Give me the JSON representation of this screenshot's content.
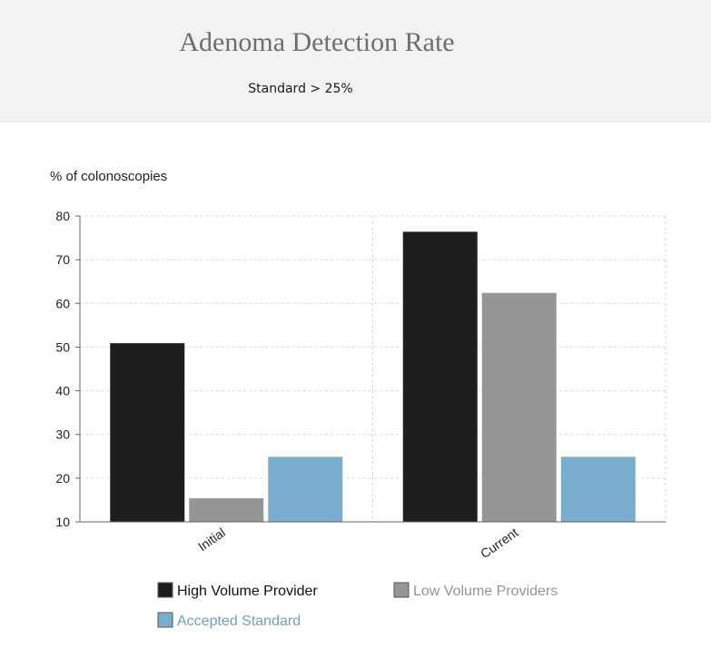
{
  "header": {
    "title": "Adenoma Detection Rate",
    "subtitle": "Standard > 25%"
  },
  "colors": {
    "high_volume": "#1e1e1e",
    "low_volume": "#959595",
    "standard": "#7aaccd",
    "grid": "#d8d8d8",
    "axis": "#666666"
  },
  "chart_data": {
    "type": "bar",
    "title": "Adenoma Detection Rate",
    "subtitle": "Standard > 25%",
    "ylabel": "% of colonoscopies",
    "xlabel": "",
    "categories": [
      "Initial",
      "Current"
    ],
    "ylim": [
      10,
      80
    ],
    "yticks": [
      10,
      20,
      30,
      40,
      50,
      60,
      70,
      80
    ],
    "grid": true,
    "legend_position": "bottom",
    "series": [
      {
        "name": "High Volume Provider",
        "values": [
          51,
          76.5
        ],
        "color": "#1e1e1e",
        "legend_text_color": "#111111"
      },
      {
        "name": "Low Volume Providers",
        "values": [
          15.5,
          62.5
        ],
        "color": "#959595",
        "legend_text_color": "#959595"
      },
      {
        "name": "Accepted Standard",
        "values": [
          25,
          25
        ],
        "color": "#7aaccd",
        "legend_text_color": "#6f9fc2"
      }
    ]
  }
}
